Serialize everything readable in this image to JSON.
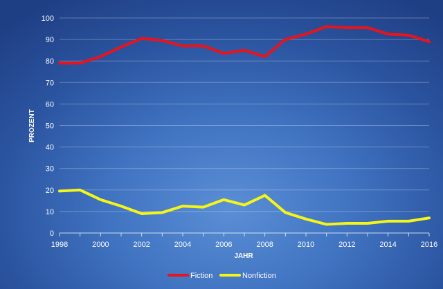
{
  "chart_data": {
    "type": "line",
    "x": [
      1998,
      1999,
      2000,
      2001,
      2002,
      2003,
      2004,
      2005,
      2006,
      2007,
      2008,
      2009,
      2010,
      2011,
      2012,
      2013,
      2014,
      2015,
      2016
    ],
    "x_tick_labels": [
      "1998",
      "2000",
      "2002",
      "2004",
      "2006",
      "2008",
      "2010",
      "2012",
      "2014",
      "2016"
    ],
    "y_tick_labels": [
      "0",
      "10",
      "20",
      "30",
      "40",
      "50",
      "60",
      "70",
      "80",
      "90",
      "100"
    ],
    "series": [
      {
        "name": "Fiction",
        "color": "#e8141c",
        "values": [
          79,
          79,
          82,
          86.5,
          90.5,
          89.5,
          87,
          87,
          83.5,
          85,
          82,
          90,
          92.5,
          96,
          95.5,
          95.5,
          92.5,
          92,
          89
        ]
      },
      {
        "name": "Nonfiction",
        "color": "#f5f51a",
        "values": [
          19.5,
          20,
          15.5,
          12.5,
          9,
          9.5,
          12.5,
          12,
          15.5,
          13,
          17.5,
          9.5,
          6.5,
          4,
          4.5,
          4.5,
          5.5,
          5.5,
          7
        ]
      }
    ],
    "xlabel": "JAHR",
    "ylabel": "PROZENT",
    "xlim": [
      1998,
      2016
    ],
    "ylim": [
      0,
      100
    ],
    "grid": "horizontal",
    "legend_position": "bottom"
  }
}
